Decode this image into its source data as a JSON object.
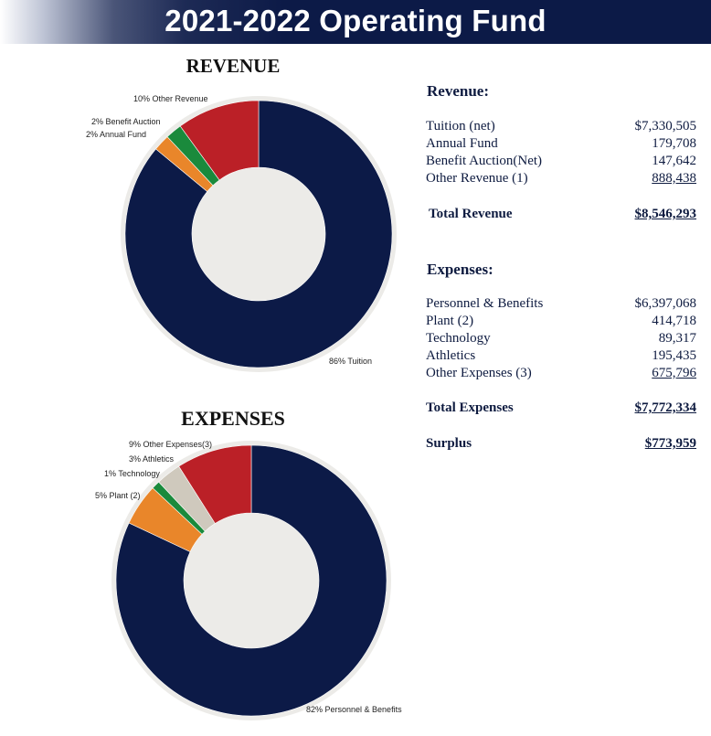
{
  "header": {
    "title": "2021-2022 Operating Fund"
  },
  "colors": {
    "navy": "#0c1a47",
    "red": "#bb2027",
    "green": "#1a8a3c",
    "orange": "#e9862a",
    "gray": "#cfc9bd"
  },
  "chart_data": [
    {
      "type": "pie",
      "title": "REVENUE",
      "donut": true,
      "categories": [
        "Tuition",
        "Annual Fund",
        "Benefit Auction",
        "Other Revenue"
      ],
      "values": [
        86,
        2,
        2,
        10
      ],
      "slice_labels": [
        "86% Tuition",
        "2% Annual Fund",
        "2% Benefit Auction",
        "10% Other Revenue"
      ],
      "colors": [
        "#0c1a47",
        "#e9862a",
        "#1a8a3c",
        "#bb2027"
      ]
    },
    {
      "type": "pie",
      "title": "EXPENSES",
      "donut": true,
      "categories": [
        "Personnel & Benefits",
        "Plant (2)",
        "Technology",
        "Athletics",
        "Other Expenses(3)"
      ],
      "values": [
        82,
        5,
        1,
        3,
        9
      ],
      "slice_labels": [
        "82% Personnel & Benefits",
        "5% Plant (2)",
        "1% Technology",
        "3% Athletics",
        "9% Other Expenses(3)"
      ],
      "colors": [
        "#0c1a47",
        "#e9862a",
        "#1a8a3c",
        "#cfc9bd",
        "#bb2027"
      ]
    }
  ],
  "revenue": {
    "heading": "Revenue:",
    "items": [
      {
        "label": "Tuition (net)",
        "amount": "$7,330,505"
      },
      {
        "label": "Annual Fund",
        "amount": "179,708"
      },
      {
        "label": "Benefit Auction(Net)",
        "amount": "147,642"
      },
      {
        "label": "Other Revenue (1)",
        "amount": "888,438"
      }
    ],
    "total_label": "Total Revenue",
    "total_amount": "$8,546,293"
  },
  "expenses": {
    "heading": "Expenses:",
    "items": [
      {
        "label": "Personnel & Benefits",
        "amount": "$6,397,068"
      },
      {
        "label": "Plant (2)",
        "amount": "414,718"
      },
      {
        "label": "Technology",
        "amount": "89,317"
      },
      {
        "label": "Athletics",
        "amount": "195,435"
      },
      {
        "label": "Other Expenses (3)",
        "amount": "675,796"
      }
    ],
    "total_label": "Total Expenses",
    "total_amount": "$7,772,334"
  },
  "surplus": {
    "label": "Surplus",
    "amount": "$773,959"
  }
}
